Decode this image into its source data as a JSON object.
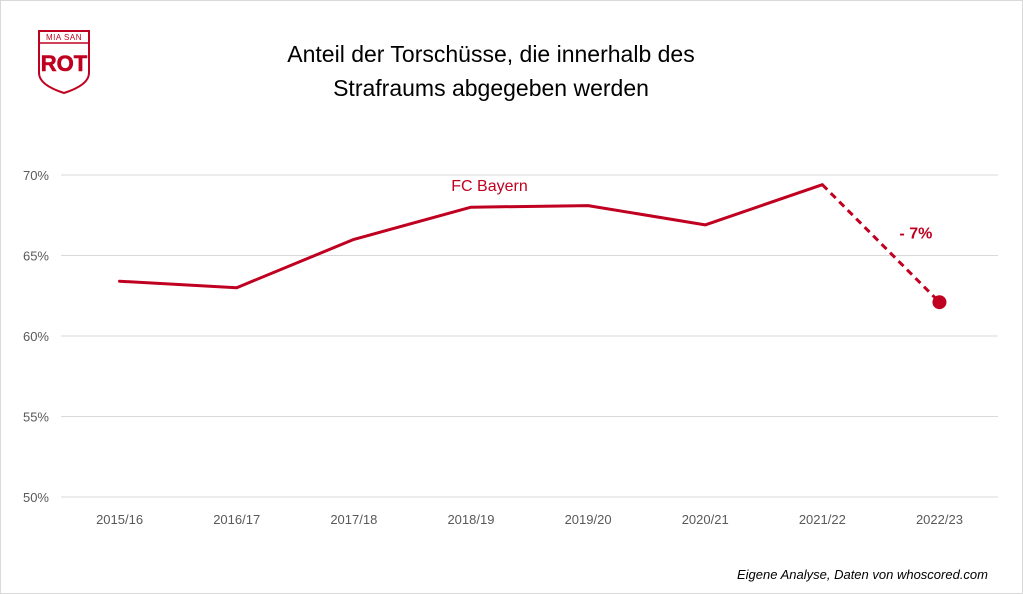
{
  "logo": {
    "top_text": "MIA SAN",
    "main_text": "ROT",
    "color": "#c00020"
  },
  "title_lines": [
    "Anteil der Torschüsse, die innerhalb des",
    "Strafraums abgegeben werden"
  ],
  "footnote": "Eigene Analyse,  Daten von whoscored.com",
  "chart_data": {
    "type": "line",
    "title": "Anteil der Torschüsse, die innerhalb des Strafraums abgegeben werden",
    "xlabel": "",
    "ylabel": "",
    "categories": [
      "2015/16",
      "2016/17",
      "2017/18",
      "2018/19",
      "2019/20",
      "2020/21",
      "2021/22",
      "2022/23"
    ],
    "y_ticks": [
      "70%",
      "65%",
      "60%",
      "55%",
      "50%"
    ],
    "ylim": [
      50,
      70
    ],
    "grid": true,
    "series": [
      {
        "name": "FC Bayern",
        "color": "#c00020",
        "values": [
          63.4,
          63.0,
          66.0,
          68.0,
          68.1,
          66.9,
          69.4,
          62.1
        ],
        "dashed_from_index": 6,
        "marker_at_index": 7
      }
    ],
    "annotation": {
      "text": "- 7%",
      "color": "#c00020"
    }
  }
}
